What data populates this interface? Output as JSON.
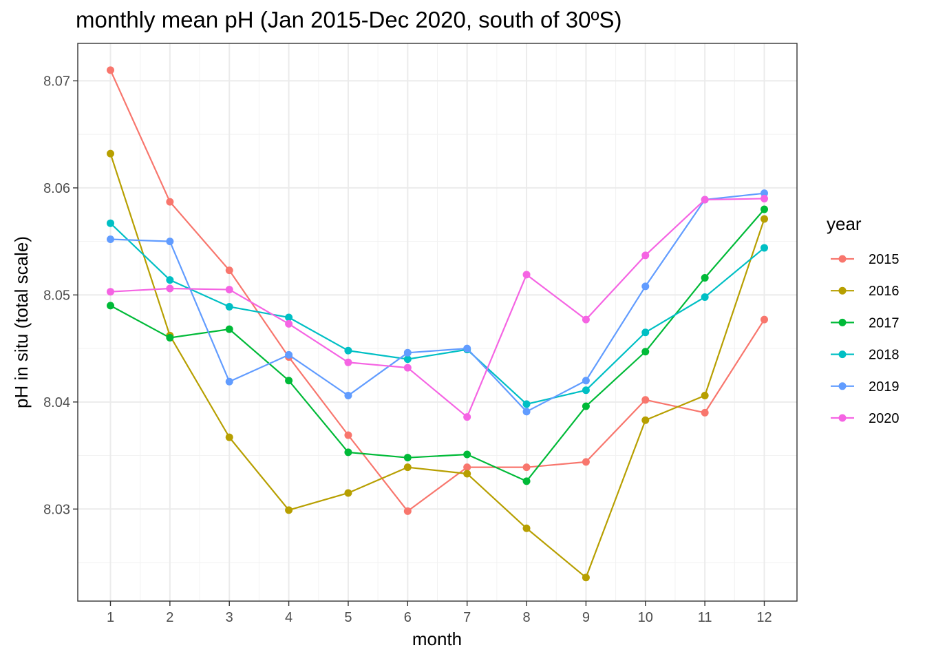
{
  "chart_data": {
    "type": "line",
    "title": "monthly mean pH (Jan 2015-Dec 2020, south of 30ºS)",
    "xlabel": "month",
    "ylabel": "pH in situ (total scale)",
    "x": [
      1,
      2,
      3,
      4,
      5,
      6,
      7,
      8,
      9,
      10,
      11,
      12
    ],
    "xticks": [
      "1",
      "2",
      "3",
      "4",
      "5",
      "6",
      "7",
      "8",
      "9",
      "10",
      "11",
      "12"
    ],
    "xlim": [
      0.45,
      12.55
    ],
    "ylim": [
      8.0214,
      8.0735
    ],
    "yticks": [
      8.03,
      8.04,
      8.05,
      8.06,
      8.07
    ],
    "ytick_labels": [
      "8.03",
      "8.04",
      "8.05",
      "8.06",
      "8.07"
    ],
    "grid": true,
    "legend": {
      "title": "year",
      "position": "right"
    },
    "series": [
      {
        "name": "2015",
        "color": "#F8766D",
        "values": [
          8.071,
          8.0587,
          8.0523,
          8.0442,
          8.0369,
          8.0298,
          8.0339,
          8.0339,
          8.0344,
          8.0402,
          8.039,
          8.0477
        ]
      },
      {
        "name": "2016",
        "color": "#B79F00",
        "values": [
          8.0632,
          8.0462,
          8.0367,
          8.0299,
          8.0315,
          8.0339,
          8.0333,
          8.0282,
          8.0236,
          8.0383,
          8.0406,
          8.0571
        ]
      },
      {
        "name": "2017",
        "color": "#00BA38",
        "values": [
          8.049,
          8.046,
          8.0468,
          8.042,
          8.0353,
          8.0348,
          8.0351,
          8.0326,
          8.0396,
          8.0447,
          8.0516,
          8.058
        ]
      },
      {
        "name": "2018",
        "color": "#00BFC4",
        "values": [
          8.0567,
          8.0514,
          8.0489,
          8.0479,
          8.0448,
          8.044,
          8.0449,
          8.0398,
          8.0411,
          8.0465,
          8.0498,
          8.0544
        ]
      },
      {
        "name": "2019",
        "color": "#619CFF",
        "values": [
          8.0552,
          8.055,
          8.0419,
          8.0444,
          8.0406,
          8.0446,
          8.045,
          8.0391,
          8.042,
          8.0508,
          8.0589,
          8.0595
        ]
      },
      {
        "name": "2020",
        "color": "#F564E3",
        "values": [
          8.0503,
          8.0506,
          8.0505,
          8.0473,
          8.0437,
          8.0432,
          8.0386,
          8.0519,
          8.0477,
          8.0537,
          8.0589,
          8.059
        ]
      }
    ]
  }
}
